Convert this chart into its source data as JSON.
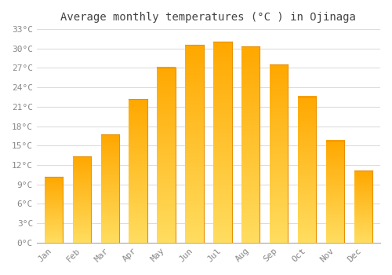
{
  "title": "Average monthly temperatures (°C ) in Ojinaga",
  "months": [
    "Jan",
    "Feb",
    "Mar",
    "Apr",
    "May",
    "Jun",
    "Jul",
    "Aug",
    "Sep",
    "Oct",
    "Nov",
    "Dec"
  ],
  "values": [
    10.2,
    13.3,
    16.7,
    22.2,
    27.1,
    30.6,
    31.1,
    30.3,
    27.5,
    22.6,
    15.8,
    11.1
  ],
  "bar_color_left": "#FFC93C",
  "bar_color_right": "#FFA500",
  "background_color": "#ffffff",
  "grid_color": "#dddddd",
  "tick_label_color": "#888888",
  "title_color": "#444444",
  "ylim": [
    0,
    33
  ],
  "yticks": [
    0,
    3,
    6,
    9,
    12,
    15,
    18,
    21,
    24,
    27,
    30,
    33
  ],
  "ytick_labels": [
    "0°C",
    "3°C",
    "6°C",
    "9°C",
    "12°C",
    "15°C",
    "18°C",
    "21°C",
    "24°C",
    "27°C",
    "30°C",
    "33°C"
  ],
  "title_fontsize": 10,
  "tick_fontsize": 8,
  "figsize": [
    5.0,
    3.5
  ],
  "dpi": 100,
  "bar_width": 0.65
}
